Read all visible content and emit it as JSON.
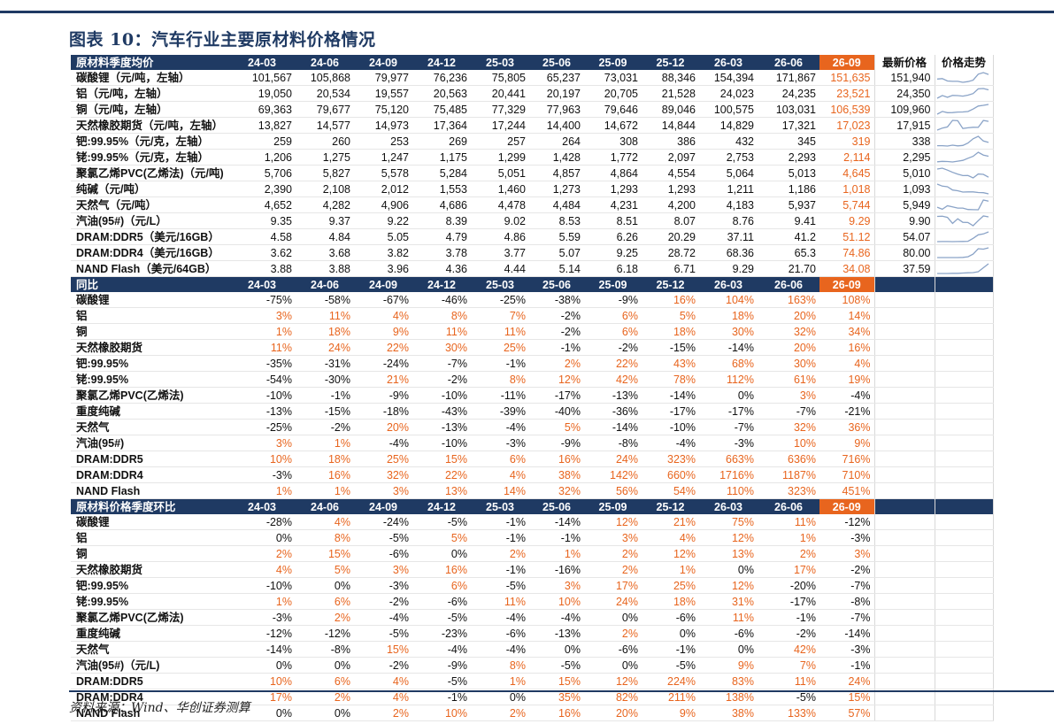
{
  "title": "图表 10：汽车行业主要原材料价格情况",
  "source": "资料来源：Wind、华创证券测算",
  "colors": {
    "header": "#1f3a63",
    "highlight": "#e8651e",
    "sparkline": "#8aa3c7"
  },
  "periods": [
    "24-03",
    "24-06",
    "24-09",
    "24-12",
    "25-03",
    "25-06",
    "25-09",
    "25-12",
    "26-03",
    "26-06",
    "26-09"
  ],
  "section1": {
    "header": "原材料季度均价",
    "extra_headers": [
      "最新价格",
      "价格走势"
    ],
    "rows": [
      {
        "name": "碳酸锂（元/吨，左轴）",
        "values": [
          "101,567",
          "105,868",
          "79,977",
          "76,236",
          "75,805",
          "65,237",
          "73,031",
          "88,346",
          "154,394",
          "171,867",
          "151,635"
        ],
        "latest": "151,940"
      },
      {
        "name": "铝（元/吨，左轴）",
        "values": [
          "19,050",
          "20,534",
          "19,557",
          "20,563",
          "20,441",
          "20,197",
          "20,705",
          "21,528",
          "24,023",
          "24,235",
          "23,521"
        ],
        "latest": "24,350"
      },
      {
        "name": "铜（元/吨，左轴）",
        "values": [
          "69,363",
          "79,677",
          "75,120",
          "75,485",
          "77,329",
          "77,963",
          "79,646",
          "89,046",
          "100,575",
          "103,031",
          "106,539"
        ],
        "latest": "109,960"
      },
      {
        "name": "天然橡胶期货（元/吨，左轴）",
        "values": [
          "13,827",
          "14,577",
          "14,973",
          "17,364",
          "17,244",
          "14,400",
          "14,672",
          "14,844",
          "14,829",
          "17,321",
          "17,023"
        ],
        "latest": "17,915"
      },
      {
        "name": "钯:99.95%（元/克，左轴）",
        "values": [
          "259",
          "260",
          "253",
          "269",
          "257",
          "264",
          "308",
          "386",
          "432",
          "345",
          "319"
        ],
        "latest": "338"
      },
      {
        "name": "铑:99.95%（元/克，左轴）",
        "values": [
          "1,206",
          "1,275",
          "1,247",
          "1,175",
          "1,299",
          "1,428",
          "1,772",
          "2,097",
          "2,753",
          "2,293",
          "2,114"
        ],
        "latest": "2,295"
      },
      {
        "name": "聚氯乙烯PVC(乙烯法)（元/吨)",
        "values": [
          "5,706",
          "5,827",
          "5,578",
          "5,284",
          "5,051",
          "4,857",
          "4,864",
          "4,554",
          "5,064",
          "5,013",
          "4,645"
        ],
        "latest": "5,010"
      },
      {
        "name": "纯碱（元/吨）",
        "values": [
          "2,390",
          "2,108",
          "2,012",
          "1,553",
          "1,460",
          "1,273",
          "1,293",
          "1,293",
          "1,211",
          "1,186",
          "1,018"
        ],
        "latest": "1,093"
      },
      {
        "name": "天然气（元/吨）",
        "values": [
          "4,652",
          "4,282",
          "4,906",
          "4,686",
          "4,478",
          "4,484",
          "4,231",
          "4,200",
          "4,183",
          "5,937",
          "5,744"
        ],
        "latest": "5,949"
      },
      {
        "name": "汽油(95#)（元/L）",
        "values": [
          "9.35",
          "9.37",
          "9.22",
          "8.39",
          "9.02",
          "8.53",
          "8.51",
          "8.07",
          "8.76",
          "9.41",
          "9.29"
        ],
        "latest": "9.90"
      },
      {
        "name": "DRAM:DDR5（美元/16GB）",
        "values": [
          "4.58",
          "4.84",
          "5.05",
          "4.79",
          "4.86",
          "5.59",
          "6.26",
          "20.29",
          "37.11",
          "41.2",
          "51.12"
        ],
        "latest": "54.07"
      },
      {
        "name": "DRAM:DDR4（美元/16GB）",
        "values": [
          "3.62",
          "3.68",
          "3.82",
          "3.78",
          "3.77",
          "5.07",
          "9.25",
          "28.72",
          "68.36",
          "65.3",
          "74.86"
        ],
        "latest": "80.00"
      },
      {
        "name": "NAND Flash（美元/64GB）",
        "values": [
          "3.88",
          "3.88",
          "3.96",
          "4.36",
          "4.44",
          "5.14",
          "6.18",
          "6.71",
          "9.29",
          "21.70",
          "34.08"
        ],
        "latest": "37.59"
      }
    ]
  },
  "section2": {
    "header": "同比",
    "rows": [
      {
        "name": "碳酸锂",
        "values": [
          "-75%",
          "-58%",
          "-67%",
          "-46%",
          "-25%",
          "-38%",
          "-9%",
          "16%",
          "104%",
          "163%",
          "108%"
        ]
      },
      {
        "name": "铝",
        "values": [
          "3%",
          "11%",
          "4%",
          "8%",
          "7%",
          "-2%",
          "6%",
          "5%",
          "18%",
          "20%",
          "14%"
        ]
      },
      {
        "name": "铜",
        "values": [
          "1%",
          "18%",
          "9%",
          "11%",
          "11%",
          "-2%",
          "6%",
          "18%",
          "30%",
          "32%",
          "34%"
        ]
      },
      {
        "name": "天然橡胶期货",
        "values": [
          "11%",
          "24%",
          "22%",
          "30%",
          "25%",
          "-1%",
          "-2%",
          "-15%",
          "-14%",
          "20%",
          "16%"
        ]
      },
      {
        "name": "钯:99.95%",
        "values": [
          "-35%",
          "-31%",
          "-24%",
          "-7%",
          "-1%",
          "2%",
          "22%",
          "43%",
          "68%",
          "30%",
          "4%"
        ]
      },
      {
        "name": "铑:99.95%",
        "values": [
          "-54%",
          "-30%",
          "21%",
          "-2%",
          "8%",
          "12%",
          "42%",
          "78%",
          "112%",
          "61%",
          "19%"
        ]
      },
      {
        "name": "聚氯乙烯PVC(乙烯法)",
        "values": [
          "-10%",
          "-1%",
          "-9%",
          "-10%",
          "-11%",
          "-17%",
          "-13%",
          "-14%",
          "0%",
          "3%",
          "-4%"
        ]
      },
      {
        "name": "重度纯碱",
        "values": [
          "-13%",
          "-15%",
          "-18%",
          "-43%",
          "-39%",
          "-40%",
          "-36%",
          "-17%",
          "-17%",
          "-7%",
          "-21%"
        ]
      },
      {
        "name": "天然气",
        "values": [
          "-25%",
          "-2%",
          "20%",
          "-13%",
          "-4%",
          "5%",
          "-14%",
          "-10%",
          "-7%",
          "32%",
          "36%"
        ]
      },
      {
        "name": "汽油(95#)",
        "values": [
          "3%",
          "1%",
          "-4%",
          "-10%",
          "-3%",
          "-9%",
          "-8%",
          "-4%",
          "-3%",
          "10%",
          "9%"
        ]
      },
      {
        "name": "DRAM:DDR5",
        "values": [
          "10%",
          "18%",
          "25%",
          "15%",
          "6%",
          "16%",
          "24%",
          "323%",
          "663%",
          "636%",
          "716%"
        ]
      },
      {
        "name": "DRAM:DDR4",
        "values": [
          "-3%",
          "16%",
          "32%",
          "22%",
          "4%",
          "38%",
          "142%",
          "660%",
          "1716%",
          "1187%",
          "710%"
        ]
      },
      {
        "name": "NAND Flash",
        "values": [
          "1%",
          "1%",
          "3%",
          "13%",
          "14%",
          "32%",
          "56%",
          "54%",
          "110%",
          "323%",
          "451%"
        ]
      }
    ]
  },
  "section3": {
    "header": "原材料价格季度环比",
    "rows": [
      {
        "name": "碳酸锂",
        "values": [
          "-28%",
          "4%",
          "-24%",
          "-5%",
          "-1%",
          "-14%",
          "12%",
          "21%",
          "75%",
          "11%",
          "-12%"
        ]
      },
      {
        "name": "铝",
        "values": [
          "0%",
          "8%",
          "-5%",
          "5%",
          "-1%",
          "-1%",
          "3%",
          "4%",
          "12%",
          "1%",
          "-3%"
        ]
      },
      {
        "name": "铜",
        "values": [
          "2%",
          "15%",
          "-6%",
          "0%",
          "2%",
          "1%",
          "2%",
          "12%",
          "13%",
          "2%",
          "3%"
        ]
      },
      {
        "name": "天然橡胶期货",
        "values": [
          "4%",
          "5%",
          "3%",
          "16%",
          "-1%",
          "-16%",
          "2%",
          "1%",
          "0%",
          "17%",
          "-2%"
        ]
      },
      {
        "name": "钯:99.95%",
        "values": [
          "-10%",
          "0%",
          "-3%",
          "6%",
          "-5%",
          "3%",
          "17%",
          "25%",
          "12%",
          "-20%",
          "-7%"
        ]
      },
      {
        "name": "铑:99.95%",
        "values": [
          "1%",
          "6%",
          "-2%",
          "-6%",
          "11%",
          "10%",
          "24%",
          "18%",
          "31%",
          "-17%",
          "-8%"
        ]
      },
      {
        "name": "聚氯乙烯PVC(乙烯法)",
        "values": [
          "-3%",
          "2%",
          "-4%",
          "-5%",
          "-4%",
          "-4%",
          "0%",
          "-6%",
          "11%",
          "-1%",
          "-7%"
        ]
      },
      {
        "name": "重度纯碱",
        "values": [
          "-12%",
          "-12%",
          "-5%",
          "-23%",
          "-6%",
          "-13%",
          "2%",
          "0%",
          "-6%",
          "-2%",
          "-14%"
        ]
      },
      {
        "name": "天然气",
        "values": [
          "-14%",
          "-8%",
          "15%",
          "-4%",
          "-4%",
          "0%",
          "-6%",
          "-1%",
          "0%",
          "42%",
          "-3%"
        ]
      },
      {
        "name": "汽油(95#)（元/L)",
        "values": [
          "0%",
          "0%",
          "-2%",
          "-9%",
          "8%",
          "-5%",
          "0%",
          "-5%",
          "9%",
          "7%",
          "-1%"
        ]
      },
      {
        "name": "DRAM:DDR5",
        "values": [
          "10%",
          "6%",
          "4%",
          "-5%",
          "1%",
          "15%",
          "12%",
          "224%",
          "83%",
          "11%",
          "24%"
        ]
      },
      {
        "name": "DRAM:DDR4",
        "values": [
          "17%",
          "2%",
          "4%",
          "-1%",
          "0%",
          "35%",
          "82%",
          "211%",
          "138%",
          "-5%",
          "15%"
        ]
      },
      {
        "name": "NAND Flash",
        "values": [
          "0%",
          "0%",
          "2%",
          "10%",
          "2%",
          "16%",
          "20%",
          "9%",
          "38%",
          "133%",
          "57%"
        ]
      }
    ]
  }
}
